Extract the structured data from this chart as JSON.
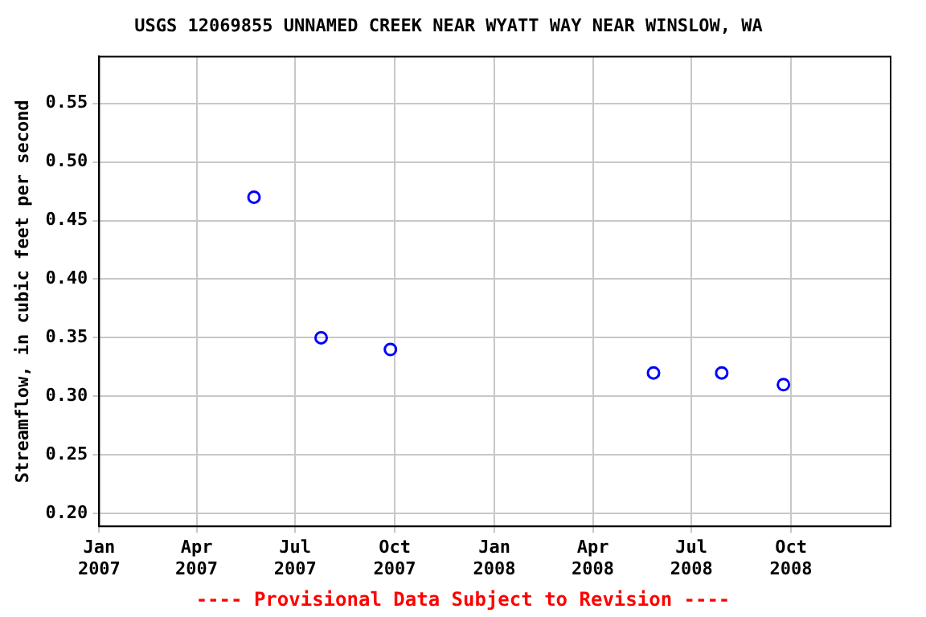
{
  "chart_data": {
    "type": "scatter",
    "title": "USGS 12069855 UNNAMED CREEK NEAR WYATT WAY NEAR WINSLOW, WA",
    "ylabel": "Streamflow, in cubic feet per second",
    "x": [
      "2007-05-24",
      "2007-07-25",
      "2007-09-27",
      "2008-05-27",
      "2008-07-29",
      "2008-09-24"
    ],
    "series": [
      {
        "color": "#0000ff",
        "values": [
          0.47,
          0.35,
          0.34,
          0.32,
          0.32,
          0.31
        ]
      }
    ],
    "marker": "circle",
    "grid": true,
    "legend": false,
    "xlim": [
      "2007-01-01",
      "2009-01-01"
    ],
    "xticks": [
      {
        "value": "2007-01-01",
        "label": "Jan 2007"
      },
      {
        "value": "2007-04-01",
        "label": "Apr 2007"
      },
      {
        "value": "2007-07-01",
        "label": "Jul 2007"
      },
      {
        "value": "2007-10-01",
        "label": "Oct 2007"
      },
      {
        "value": "2008-01-01",
        "label": "Jan 2008"
      },
      {
        "value": "2008-04-01",
        "label": "Apr 2008"
      },
      {
        "value": "2008-07-01",
        "label": "Jul 2008"
      },
      {
        "value": "2008-10-01",
        "label": "Oct 2008"
      }
    ],
    "ylim": [
      0.189,
      0.59
    ],
    "yticks": [
      {
        "value": 0.2,
        "label": "0.20"
      },
      {
        "value": 0.25,
        "label": "0.25"
      },
      {
        "value": 0.3,
        "label": "0.30"
      },
      {
        "value": 0.35,
        "label": "0.35"
      },
      {
        "value": 0.4,
        "label": "0.40"
      },
      {
        "value": 0.45,
        "label": "0.45"
      },
      {
        "value": 0.5,
        "label": "0.50"
      },
      {
        "value": 0.55,
        "label": "0.55"
      }
    ],
    "annotations": [
      "---- Provisional Data Subject to Revision ----"
    ]
  }
}
